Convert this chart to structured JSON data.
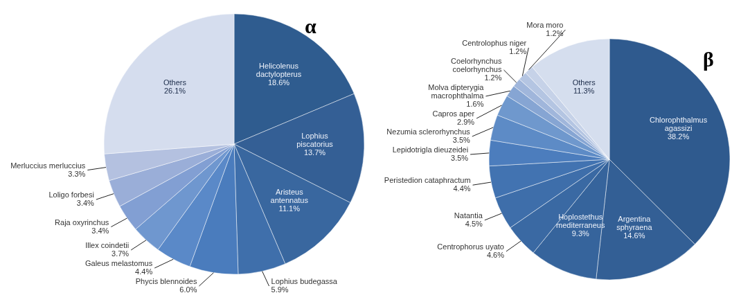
{
  "chart_data": [
    {
      "type": "pie",
      "title": "α",
      "categories": [
        "Helicolenus dactylopterus",
        "Lophius piscatorius",
        "Aristeus antennatus",
        "Lophius budegassa",
        "Phycis blennoides",
        "Galeus melastomus",
        "Illex coindetii",
        "Raja oxyrinchus",
        "Loligo forbesi",
        "Merluccius merluccius",
        "Others"
      ],
      "values": [
        18.6,
        13.7,
        11.1,
        5.9,
        6.0,
        4.4,
        3.7,
        3.4,
        3.4,
        3.3,
        26.1
      ],
      "value_labels": [
        "18.6%",
        "13.7%",
        "11.1%",
        "5.9%",
        "6.0%",
        "4.4%",
        "3.7%",
        "3.4%",
        "3.4%",
        "3.3%",
        "26.1%"
      ],
      "colors": [
        "#2f5c8f",
        "#345f95",
        "#39679f",
        "#3f6fab",
        "#4a7cbd",
        "#5a89c8",
        "#6f97cf",
        "#829fd3",
        "#9aaed8",
        "#b4c1e0",
        "#d5ddee"
      ]
    },
    {
      "type": "pie",
      "title": "β",
      "categories": [
        "Chlorophthalmus agassizi",
        "Argentina sphyraena",
        "Hoplostethus mediterraneus",
        "Centrophorus uyato",
        "Natantia",
        "Peristedion cataphractum",
        "Lepidotrigla dieuzeidei",
        "Nezumia sclerorhynchus",
        "Capros aper",
        "Molva dipterygia macrophthalma",
        "Coelorhynchus coelorhynchus",
        "Centrolophus niger",
        "Mora moro",
        "Others"
      ],
      "values": [
        38.2,
        14.6,
        9.3,
        4.6,
        4.5,
        4.4,
        3.5,
        3.5,
        2.9,
        1.6,
        1.2,
        1.2,
        1.2,
        11.3
      ],
      "value_labels": [
        "38.2%",
        "14.6%",
        "9.3%",
        "4.6%",
        "4.5%",
        "4.4%",
        "3.5%",
        "3.5%",
        "2.9%",
        "1.6%",
        "1.2%",
        "1.2%",
        "1.2%",
        "11.3%"
      ],
      "colors": [
        "#2f5a8e",
        "#335f95",
        "#36649c",
        "#3a69a3",
        "#3e6eaa",
        "#4273b1",
        "#4c7dbd",
        "#5d8bc6",
        "#6f98cd",
        "#86a5d3",
        "#a0b6db",
        "#b4c5e2",
        "#c6d2e8",
        "#d5deee"
      ]
    }
  ]
}
